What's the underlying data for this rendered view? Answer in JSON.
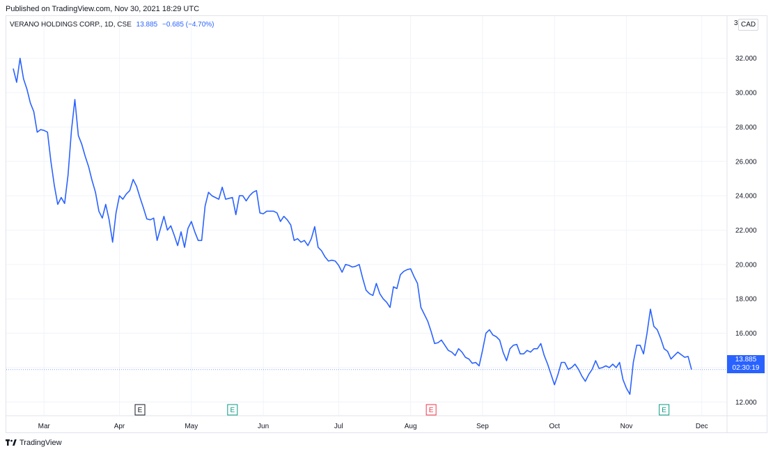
{
  "header": {
    "published": "Published on TradingView.com, Nov 30, 2021 18:29 UTC"
  },
  "legend": {
    "symbol": "VERANO HOLDINGS CORP., 1D, CSE",
    "last": "13.885",
    "change": "−0.685 (−4.70%)"
  },
  "currency_label": "CAD",
  "axis_top_partial": "3",
  "price_tag": {
    "price": "13.885",
    "countdown": "02:30:19"
  },
  "footer": {
    "brand": "TradingView",
    "logo_icon": "tradingview-logo-icon"
  },
  "colors": {
    "line": "#2962ff",
    "grid": "#f0f3fa",
    "earnings_neutral": "#131722",
    "earnings_up": "#089981",
    "earnings_down": "#f23645"
  },
  "chart_data": {
    "type": "line",
    "title": "",
    "xlabel": "",
    "ylabel": "",
    "grid": true,
    "ylim": [
      11.2,
      34.5
    ],
    "y_ticks": [
      "12.000",
      "14.000",
      "16.000",
      "18.000",
      "20.000",
      "22.000",
      "24.000",
      "26.000",
      "28.000",
      "30.000",
      "32.000"
    ],
    "x_ticks": [
      {
        "label": "Mar",
        "index": 9
      },
      {
        "label": "Apr",
        "index": 31
      },
      {
        "label": "May",
        "index": 52
      },
      {
        "label": "Jun",
        "index": 73
      },
      {
        "label": "Jul",
        "index": 95
      },
      {
        "label": "Aug",
        "index": 116
      },
      {
        "label": "Sep",
        "index": 137
      },
      {
        "label": "Oct",
        "index": 158
      },
      {
        "label": "Nov",
        "index": 179
      },
      {
        "label": "Dec",
        "index": 201
      }
    ],
    "x_max_index": 209,
    "earnings_markers": [
      {
        "label": "E",
        "index": 37,
        "kind": "neutral"
      },
      {
        "label": "E",
        "index": 64,
        "kind": "up"
      },
      {
        "label": "E",
        "index": 122,
        "kind": "down"
      },
      {
        "label": "E",
        "index": 190,
        "kind": "up"
      }
    ],
    "series": [
      {
        "values": [
          31.4,
          30.6,
          32.0,
          30.8,
          30.2,
          29.4,
          28.9,
          27.7,
          27.85,
          27.8,
          27.7,
          26.0,
          24.6,
          23.5,
          23.9,
          23.55,
          25.2,
          27.8,
          29.6,
          27.5,
          27.0,
          26.3,
          25.7,
          24.9,
          24.2,
          23.1,
          22.7,
          23.5,
          22.6,
          21.3,
          23.0,
          24.0,
          23.8,
          24.1,
          24.3,
          24.95,
          24.55,
          23.9,
          23.3,
          22.65,
          22.6,
          22.7,
          21.4,
          22.1,
          22.8,
          22.0,
          22.25,
          21.7,
          21.1,
          21.9,
          21.0,
          22.1,
          22.5,
          21.9,
          21.4,
          21.4,
          23.4,
          24.2,
          24.0,
          23.9,
          23.8,
          24.5,
          23.8,
          23.85,
          23.9,
          22.9,
          24.0,
          24.0,
          23.7,
          24.0,
          24.2,
          24.3,
          23.0,
          22.95,
          23.1,
          23.1,
          23.1,
          23.0,
          22.5,
          22.8,
          22.6,
          22.3,
          21.4,
          21.5,
          21.3,
          21.4,
          21.1,
          21.5,
          22.2,
          21.0,
          20.8,
          20.45,
          20.2,
          20.25,
          20.2,
          19.95,
          19.55,
          20.0,
          19.95,
          19.85,
          19.9,
          20.0,
          19.2,
          18.5,
          18.3,
          18.2,
          18.9,
          18.3,
          18.0,
          17.8,
          17.5,
          18.7,
          18.6,
          19.4,
          19.6,
          19.7,
          19.75,
          19.3,
          18.9,
          17.5,
          17.1,
          16.7,
          16.1,
          15.4,
          15.45,
          15.6,
          15.3,
          15.0,
          14.9,
          14.7,
          15.1,
          14.9,
          14.6,
          14.5,
          14.25,
          14.3,
          14.1,
          15.0,
          16.0,
          16.2,
          15.9,
          15.8,
          15.6,
          14.9,
          14.4,
          15.1,
          15.3,
          15.35,
          14.8,
          14.8,
          15.0,
          14.9,
          15.1,
          15.1,
          15.4,
          14.7,
          14.2,
          13.6,
          13.0,
          13.6,
          14.3,
          14.3,
          13.9,
          14.0,
          14.2,
          13.9,
          13.5,
          13.2,
          13.6,
          13.9,
          14.4,
          13.95,
          14.0,
          14.1,
          14.0,
          14.2,
          14.0,
          14.3,
          13.3,
          12.8,
          12.45,
          14.3,
          15.3,
          15.3,
          14.8,
          16.0,
          17.4,
          16.4,
          16.2,
          15.7,
          15.1,
          14.95,
          14.5,
          14.7,
          14.9,
          14.75,
          14.6,
          14.65,
          13.885
        ]
      }
    ]
  }
}
